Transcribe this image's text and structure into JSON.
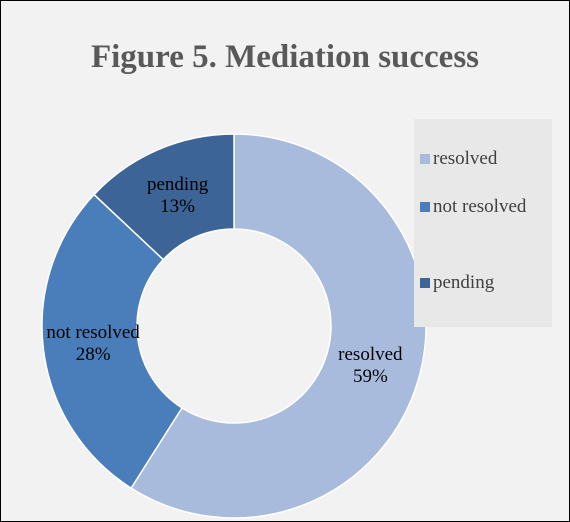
{
  "chart_data": {
    "type": "donut",
    "title": "Figure 5. Mediation success",
    "categories": [
      "resolved",
      "not resolved",
      "pending"
    ],
    "values": [
      59,
      28,
      13
    ],
    "value_labels": [
      "59%",
      "28%",
      "13%"
    ],
    "colors": [
      "#a9bbdc",
      "#4a7ebb",
      "#3c6497"
    ],
    "legend": "right"
  }
}
